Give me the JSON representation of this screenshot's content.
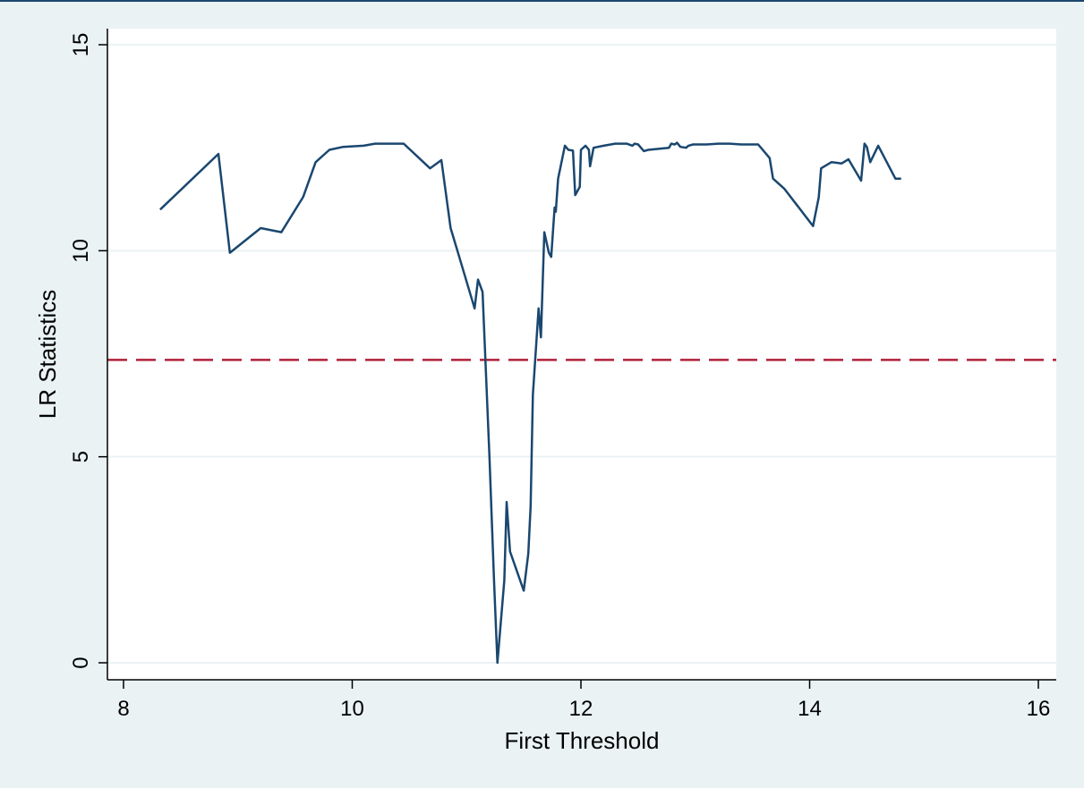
{
  "chart_data": {
    "type": "line",
    "title": "",
    "xlabel": "First Threshold",
    "ylabel": "LR Statistics",
    "xlim": [
      8,
      16
    ],
    "ylim": [
      0,
      15
    ],
    "xticks": [
      8,
      10,
      12,
      14,
      16
    ],
    "yticks": [
      0,
      5,
      10,
      15
    ],
    "grid": "horizontal",
    "legend": "none",
    "colors": {
      "background": "#eaf2f3",
      "plot_background": "#ffffff",
      "grid": "#eaf2f3",
      "line": "#1a476f",
      "reference": "#b0203a"
    },
    "reference_line": {
      "y": 7.35,
      "style": "dashed"
    },
    "series": [
      {
        "x": [
          8.32,
          8.83,
          8.93,
          9.2,
          9.38,
          9.57,
          9.68,
          9.8,
          9.92,
          10.1,
          10.2,
          10.45,
          10.68,
          10.78,
          10.86,
          10.92,
          11.07,
          11.1,
          11.14,
          11.2,
          11.24,
          11.27,
          11.33,
          11.35,
          11.38,
          11.5,
          11.54,
          11.56,
          11.58,
          11.63,
          11.65,
          11.68,
          11.72,
          11.74,
          11.77,
          11.78,
          11.8,
          11.83,
          11.86,
          11.89,
          11.93,
          11.95,
          11.99,
          12.0,
          12.04,
          12.07,
          12.08,
          12.11,
          12.2,
          12.3,
          12.4,
          12.45,
          12.47,
          12.5,
          12.55,
          12.59,
          12.77,
          12.79,
          12.82,
          12.84,
          12.87,
          12.92,
          12.94,
          12.98,
          13.1,
          13.2,
          13.3,
          13.4,
          13.55,
          13.65,
          13.68,
          13.78,
          14.03,
          14.08,
          14.1,
          14.19,
          14.28,
          14.34,
          14.45,
          14.48,
          14.5,
          14.53,
          14.6,
          14.75,
          14.8
        ],
        "y": [
          11.0,
          12.35,
          9.95,
          10.55,
          10.45,
          11.3,
          12.15,
          12.45,
          12.52,
          12.55,
          12.6,
          12.6,
          12.0,
          12.2,
          10.55,
          10.0,
          8.6,
          9.3,
          9.0,
          5.0,
          2.0,
          0.0,
          2.0,
          3.9,
          2.7,
          1.75,
          2.65,
          3.8,
          6.5,
          8.6,
          7.9,
          10.45,
          9.95,
          9.85,
          11.05,
          10.95,
          11.75,
          12.15,
          12.55,
          12.45,
          12.43,
          11.35,
          11.55,
          12.45,
          12.55,
          12.45,
          12.05,
          12.5,
          12.55,
          12.6,
          12.6,
          12.55,
          12.6,
          12.58,
          12.42,
          12.45,
          12.5,
          12.6,
          12.58,
          12.62,
          12.52,
          12.5,
          12.55,
          12.58,
          12.58,
          12.6,
          12.6,
          12.58,
          12.58,
          12.25,
          11.75,
          11.5,
          10.6,
          11.3,
          12.0,
          12.15,
          12.12,
          12.22,
          11.7,
          12.6,
          12.52,
          12.15,
          12.55,
          11.75,
          11.75
        ]
      }
    ]
  }
}
